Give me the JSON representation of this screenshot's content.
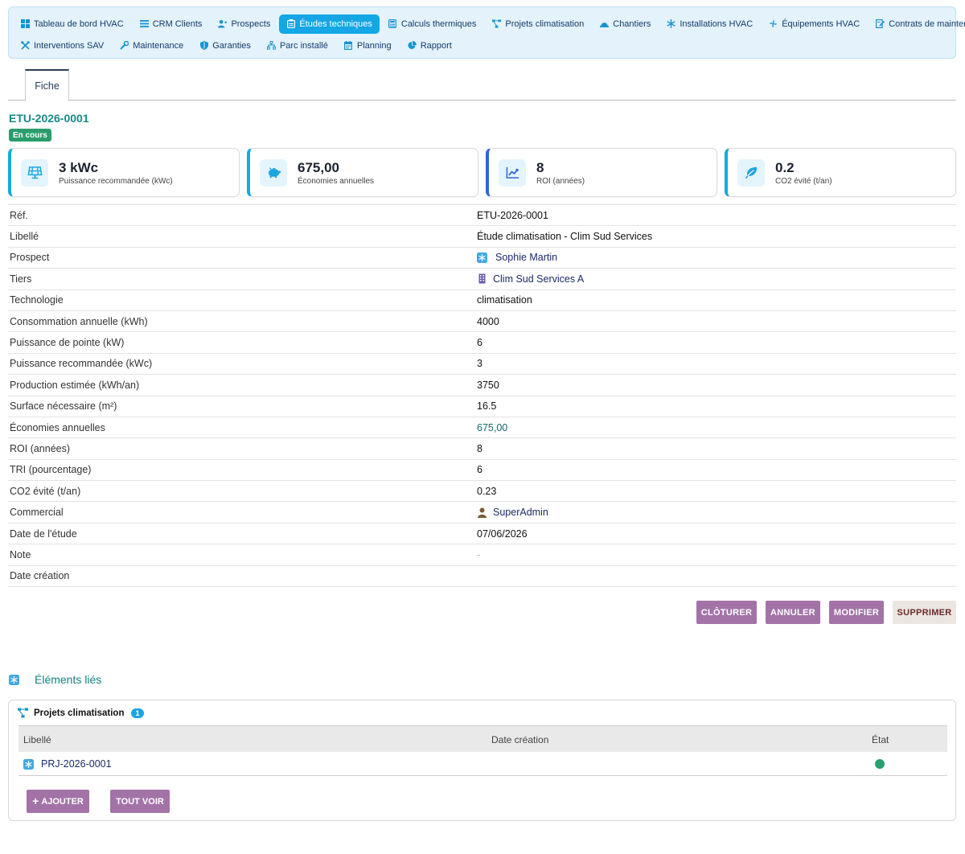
{
  "nav": {
    "row1": [
      {
        "icon": "dashboard-icon",
        "label": "Tableau de bord HVAC"
      },
      {
        "icon": "list-icon",
        "label": "CRM Clients"
      },
      {
        "icon": "user-plus-icon",
        "label": "Prospects"
      },
      {
        "icon": "clipboard-icon",
        "label": "Études techniques",
        "active": true
      },
      {
        "icon": "calculator-icon",
        "label": "Calculs thermiques"
      },
      {
        "icon": "project-diagram-icon",
        "label": "Projets climatisation"
      },
      {
        "icon": "hardhat-icon",
        "label": "Chantiers"
      },
      {
        "icon": "snowflake-icon",
        "label": "Installations HVAC"
      },
      {
        "icon": "fan-icon",
        "label": "Équipements HVAC"
      },
      {
        "icon": "contract-icon",
        "label": "Contrats de maintenance"
      }
    ],
    "row2": [
      {
        "icon": "tools-icon",
        "label": "Interventions SAV"
      },
      {
        "icon": "wrench-icon",
        "label": "Maintenance"
      },
      {
        "icon": "shield-icon",
        "label": "Garanties"
      },
      {
        "icon": "sitemap-icon",
        "label": "Parc installé"
      },
      {
        "icon": "calendar-icon",
        "label": "Planning"
      },
      {
        "icon": "pie-chart-icon",
        "label": "Rapport"
      }
    ]
  },
  "tabs": {
    "fiche": "Fiche"
  },
  "record": {
    "ref": "ETU-2026-0001",
    "status": "En cours"
  },
  "kpis": [
    {
      "icon": "solar-panel-icon",
      "value": "3 kWc",
      "label": "Puissance recommandée (kWc)"
    },
    {
      "icon": "piggy-bank-icon",
      "value": "675,00",
      "label": "Économies annuelles"
    },
    {
      "icon": "chart-line-icon",
      "value": "8",
      "label": "ROI (années)"
    },
    {
      "icon": "leaf-icon",
      "value": "0.2",
      "label": "CO2 évité (t/an)"
    }
  ],
  "details": [
    {
      "label": "Réf.",
      "value": "ETU-2026-0001"
    },
    {
      "label": "Libellé",
      "value": "Étude climatisation - Clim Sud Services"
    },
    {
      "label": "Prospect",
      "value": "Sophie Martin"
    },
    {
      "label": "Tiers",
      "value": "Clim Sud Services A"
    },
    {
      "label": "Technologie",
      "value": "climatisation"
    },
    {
      "label": "Consommation annuelle (kWh)",
      "value": "4000"
    },
    {
      "label": "Puissance de pointe (kW)",
      "value": "6"
    },
    {
      "label": "Puissance recommandée (kWc)",
      "value": "3"
    },
    {
      "label": "Production estimée (kWh/an)",
      "value": "3750"
    },
    {
      "label": "Surface nécessaire (m²)",
      "value": "16.5"
    },
    {
      "label": "Économies annuelles",
      "value": "675,00"
    },
    {
      "label": "ROI (années)",
      "value": "8"
    },
    {
      "label": "TRI (pourcentage)",
      "value": "6"
    },
    {
      "label": "CO2 évité (t/an)",
      "value": "0.23"
    },
    {
      "label": "Commercial",
      "value": "SuperAdmin"
    },
    {
      "label": "Date de l'étude",
      "value": "07/06/2026"
    },
    {
      "label": "Note",
      "value": "-"
    },
    {
      "label": "Date création",
      "value": ""
    }
  ],
  "actions": {
    "close": "CLÔTURER",
    "cancel": "ANNULER",
    "edit": "MODIFIER",
    "delete": "SUPPRIMER"
  },
  "linked": {
    "title": "Éléments liés",
    "panel_title": "Projets climatisation",
    "count": "1",
    "headers": {
      "label": "Libellé",
      "date": "Date création",
      "state": "État"
    },
    "rows": [
      {
        "label": "PRJ-2026-0001"
      }
    ],
    "add": "AJOUTER",
    "see_all": "TOUT VOIR"
  },
  "colors": {
    "accent": "#13a7e6",
    "button": "#a373a8",
    "status_ok": "#26a06d",
    "teal": "#168a8a"
  }
}
